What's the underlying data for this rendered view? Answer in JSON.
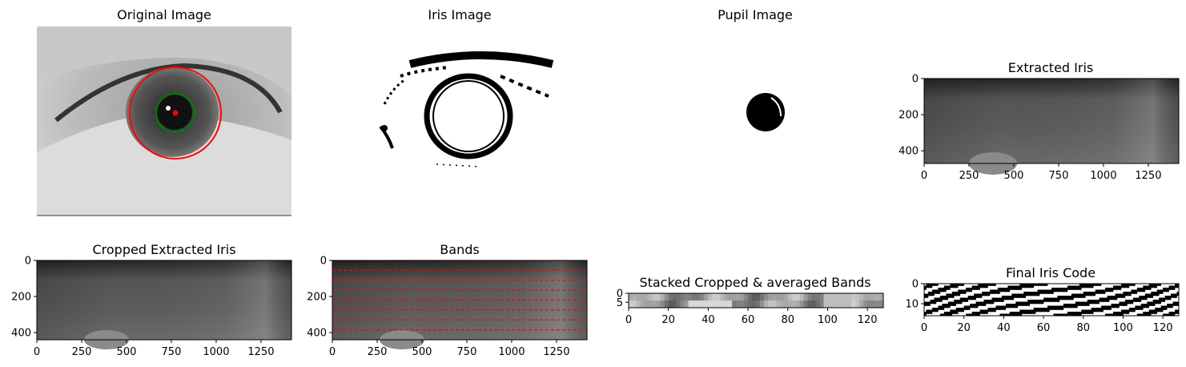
{
  "chart_data": [
    {
      "id": "original",
      "type": "image",
      "title": "Original Image",
      "axes": "off",
      "overlays": [
        {
          "shape": "circle",
          "color": "#ff0000",
          "label": "iris boundary"
        },
        {
          "shape": "circle",
          "color": "#008000",
          "label": "pupil boundary"
        },
        {
          "shape": "point",
          "color": "#ff0000",
          "label": "center"
        }
      ]
    },
    {
      "id": "iris",
      "type": "image",
      "title": "Iris Image",
      "axes": "off",
      "colormap": "binary"
    },
    {
      "id": "pupil",
      "type": "image",
      "title": "Pupil Image",
      "axes": "off",
      "colormap": "binary"
    },
    {
      "id": "extracted",
      "type": "image",
      "title": "Extracted Iris",
      "colormap": "gray",
      "xlim": [
        0,
        1420
      ],
      "ylim": [
        470,
        0
      ],
      "xticks": [
        0,
        250,
        500,
        750,
        1000,
        1250
      ],
      "yticks": [
        0,
        200,
        400
      ]
    },
    {
      "id": "cropped",
      "type": "image",
      "title": "Cropped Extracted Iris",
      "colormap": "gray",
      "xlim": [
        0,
        1420
      ],
      "ylim": [
        440,
        0
      ],
      "xticks": [
        0,
        250,
        500,
        750,
        1000,
        1250
      ],
      "yticks": [
        0,
        200,
        400
      ]
    },
    {
      "id": "bands",
      "type": "image",
      "title": "Bands",
      "colormap": "gray",
      "xlim": [
        0,
        1420
      ],
      "ylim": [
        440,
        0
      ],
      "xticks": [
        0,
        250,
        500,
        750,
        1000,
        1250
      ],
      "yticks": [
        0,
        200,
        400
      ],
      "hlines": {
        "y": [
          55,
          110,
          165,
          220,
          275,
          330,
          385
        ],
        "color": "#ff0000",
        "style": "dashed"
      }
    },
    {
      "id": "stacked",
      "type": "heatmap",
      "title": "Stacked Cropped & averaged Bands",
      "colormap": "gray",
      "xlim": [
        0,
        128
      ],
      "ylim": [
        8,
        0
      ],
      "xticks": [
        0,
        20,
        40,
        60,
        80,
        100,
        120
      ],
      "yticks": [
        0,
        5
      ]
    },
    {
      "id": "code",
      "type": "heatmap",
      "title": "Final Iris Code",
      "colormap": "binary",
      "xlim": [
        0,
        128
      ],
      "ylim": [
        16,
        0
      ],
      "xticks": [
        0,
        20,
        40,
        60,
        80,
        100,
        120
      ],
      "yticks": [
        0,
        10
      ]
    }
  ]
}
